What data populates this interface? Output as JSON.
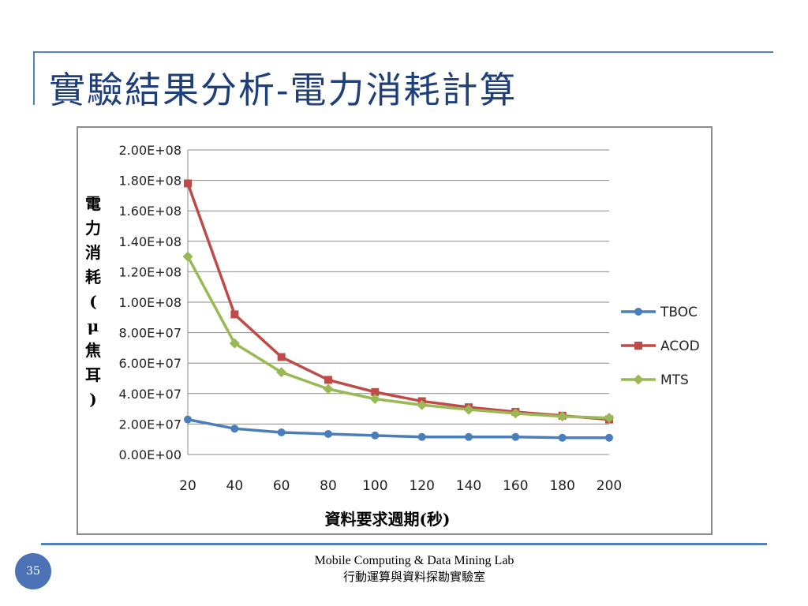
{
  "slide": {
    "title": "實驗結果分析-電力消耗計算",
    "page_number": "35",
    "footer_line1": "Mobile Computing & Data Mining Lab",
    "footer_line2": "行動運算與資料探勘實驗室"
  },
  "chart_data": {
    "type": "line",
    "title": "",
    "xlabel": "資料要求週期(秒)",
    "ylabel": "電力消耗(μ焦耳)",
    "categories": [
      20,
      40,
      60,
      80,
      100,
      120,
      140,
      160,
      180,
      200
    ],
    "y_ticks": [
      "0.00E+00",
      "2.00E+07",
      "4.00E+07",
      "6.00E+07",
      "8.00E+07",
      "1.00E+08",
      "1.20E+08",
      "1.40E+08",
      "1.60E+08",
      "1.80E+08",
      "2.00E+08"
    ],
    "ylim": [
      0,
      200000000
    ],
    "grid": true,
    "legend_position": "right",
    "series": [
      {
        "name": "TBOC",
        "color": "#4a7ebb",
        "marker": "circle",
        "values": [
          23000000,
          17000000,
          14500000,
          13500000,
          12500000,
          11500000,
          11500000,
          11500000,
          11000000,
          11000000
        ]
      },
      {
        "name": "ACOD",
        "color": "#be4b48",
        "marker": "square",
        "values": [
          178000000,
          92000000,
          64000000,
          49000000,
          41000000,
          35000000,
          31000000,
          28000000,
          25500000,
          23000000
        ]
      },
      {
        "name": "MTS",
        "color": "#98b954",
        "marker": "diamond",
        "values": [
          130000000,
          73000000,
          54000000,
          43000000,
          36500000,
          32500000,
          29500000,
          27000000,
          25000000,
          24000000
        ]
      }
    ]
  }
}
